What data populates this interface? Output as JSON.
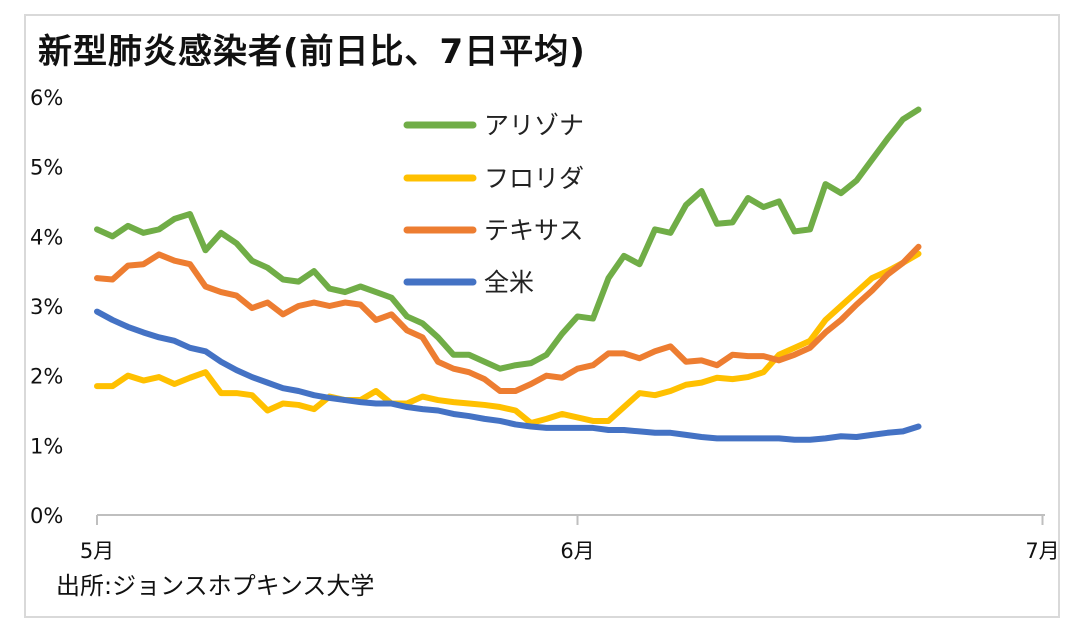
{
  "chart_data": {
    "type": "line",
    "title": "新型肺炎感染者(前日比、7日平均)",
    "source": "出所:ジョンスホプキンス大学",
    "xlabel": "",
    "ylabel": "",
    "ylim": [
      0,
      6
    ],
    "y_ticks": [
      "0%",
      "1%",
      "2%",
      "3%",
      "4%",
      "5%",
      "6%"
    ],
    "x_ticks": [
      {
        "label": "5月",
        "day": 0
      },
      {
        "label": "6月",
        "day": 31
      },
      {
        "label": "7月",
        "day": 61
      }
    ],
    "x_range": [
      0,
      61
    ],
    "series": [
      {
        "name": "アリゾナ",
        "color": "#70ad47",
        "values": [
          4.1,
          4.0,
          4.15,
          4.05,
          4.1,
          4.25,
          4.32,
          3.8,
          4.05,
          3.9,
          3.65,
          3.55,
          3.38,
          3.35,
          3.5,
          3.25,
          3.2,
          3.28,
          3.2,
          3.12,
          2.85,
          2.75,
          2.55,
          2.3,
          2.3,
          2.2,
          2.1,
          2.15,
          2.18,
          2.3,
          2.6,
          2.85,
          2.82,
          3.4,
          3.72,
          3.6,
          4.1,
          4.05,
          4.45,
          4.65,
          4.18,
          4.2,
          4.55,
          4.42,
          4.5,
          4.07,
          4.1,
          4.75,
          4.62,
          4.8,
          5.1,
          5.4,
          5.68,
          5.82
        ]
      },
      {
        "name": "フロリダ",
        "color": "#ffc000",
        "values": [
          1.85,
          1.85,
          2.0,
          1.93,
          1.98,
          1.88,
          1.97,
          2.05,
          1.75,
          1.75,
          1.72,
          1.5,
          1.6,
          1.58,
          1.52,
          1.7,
          1.65,
          1.65,
          1.78,
          1.6,
          1.6,
          1.7,
          1.65,
          1.62,
          1.6,
          1.58,
          1.55,
          1.5,
          1.32,
          1.38,
          1.45,
          1.4,
          1.35,
          1.35,
          1.55,
          1.75,
          1.72,
          1.78,
          1.87,
          1.9,
          1.97,
          1.95,
          1.98,
          2.05,
          2.3,
          2.4,
          2.5,
          2.8,
          3.0,
          3.2,
          3.4,
          3.5,
          3.62,
          3.75
        ]
      },
      {
        "name": "テキサス",
        "color": "#ed7d31",
        "values": [
          3.4,
          3.38,
          3.58,
          3.6,
          3.74,
          3.65,
          3.6,
          3.28,
          3.2,
          3.15,
          2.97,
          3.05,
          2.88,
          3.0,
          3.05,
          3.0,
          3.05,
          3.02,
          2.8,
          2.88,
          2.65,
          2.55,
          2.2,
          2.1,
          2.05,
          1.95,
          1.78,
          1.78,
          1.88,
          2.0,
          1.97,
          2.1,
          2.15,
          2.32,
          2.32,
          2.25,
          2.35,
          2.42,
          2.2,
          2.22,
          2.15,
          2.3,
          2.28,
          2.28,
          2.22,
          2.3,
          2.4,
          2.62,
          2.8,
          3.02,
          3.22,
          3.45,
          3.62,
          3.85
        ]
      },
      {
        "name": "全米",
        "color": "#4472c4",
        "values": [
          2.92,
          2.8,
          2.7,
          2.62,
          2.55,
          2.5,
          2.4,
          2.35,
          2.2,
          2.08,
          1.98,
          1.9,
          1.82,
          1.78,
          1.72,
          1.68,
          1.65,
          1.62,
          1.6,
          1.6,
          1.55,
          1.52,
          1.5,
          1.45,
          1.42,
          1.38,
          1.35,
          1.3,
          1.27,
          1.25,
          1.25,
          1.25,
          1.25,
          1.22,
          1.22,
          1.2,
          1.18,
          1.18,
          1.15,
          1.12,
          1.1,
          1.1,
          1.1,
          1.1,
          1.1,
          1.08,
          1.08,
          1.1,
          1.13,
          1.12,
          1.15,
          1.18,
          1.2,
          1.27
        ]
      }
    ]
  }
}
